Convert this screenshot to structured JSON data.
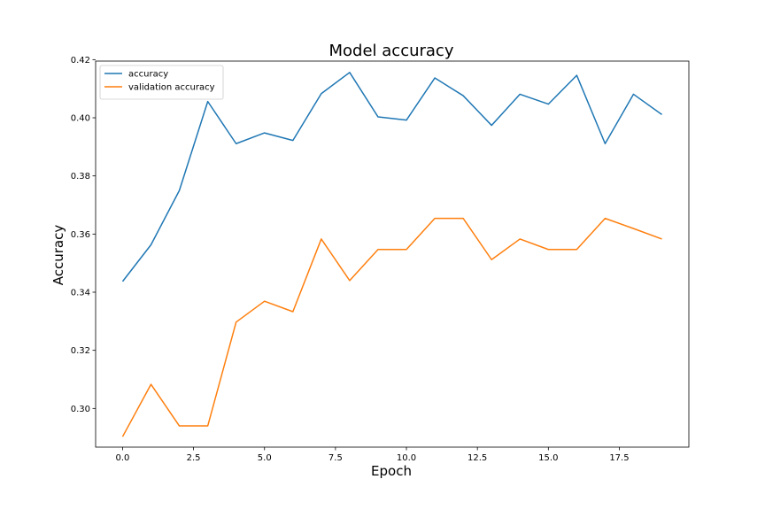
{
  "chart_data": {
    "type": "line",
    "title": "Model accuracy",
    "xlabel": "Epoch",
    "ylabel": "Accuracy",
    "x": [
      0,
      1,
      2,
      3,
      4,
      5,
      6,
      7,
      8,
      9,
      10,
      11,
      12,
      13,
      14,
      15,
      16,
      17,
      18,
      19
    ],
    "xlim": [
      -0.95,
      19.95
    ],
    "ylim": [
      0.2867,
      0.4195
    ],
    "xticks": [
      0.0,
      2.5,
      5.0,
      7.5,
      10.0,
      12.5,
      15.0,
      17.5
    ],
    "xtick_labels": [
      "0.0",
      "2.5",
      "5.0",
      "7.5",
      "10.0",
      "12.5",
      "15.0",
      "17.5"
    ],
    "yticks": [
      0.3,
      0.32,
      0.34,
      0.36,
      0.38,
      0.4,
      0.42
    ],
    "ytick_labels": [
      "0.30",
      "0.32",
      "0.34",
      "0.36",
      "0.38",
      "0.40",
      "0.42"
    ],
    "grid": false,
    "legend_position": "upper-left",
    "series": [
      {
        "name": "accuracy",
        "color": "#1f77b4",
        "values": [
          0.3437,
          0.3563,
          0.375,
          0.4056,
          0.3911,
          0.3948,
          0.3922,
          0.4083,
          0.4156,
          0.4003,
          0.3992,
          0.4137,
          0.4076,
          0.3974,
          0.4081,
          0.4047,
          0.4146,
          0.3911,
          0.4081,
          0.4011
        ]
      },
      {
        "name": "validation accuracy",
        "color": "#ff7f0e",
        "values": [
          0.2903,
          0.3083,
          0.294,
          0.294,
          0.3297,
          0.3369,
          0.3333,
          0.3583,
          0.344,
          0.3547,
          0.3547,
          0.3654,
          0.3654,
          0.3512,
          0.3583,
          0.3547,
          0.3547,
          0.3654,
          0.3619,
          0.3583
        ]
      }
    ]
  }
}
